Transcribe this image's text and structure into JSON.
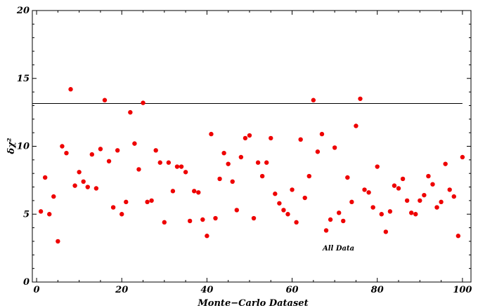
{
  "chart_data": {
    "type": "scatter",
    "title": "",
    "xlabel": "Monte−Carlo Dataset",
    "ylabel": "δχ²",
    "xlim": [
      -1,
      102
    ],
    "ylim": [
      0,
      20
    ],
    "x_ticks": [
      "0",
      "20",
      "40",
      "60",
      "80",
      "100"
    ],
    "y_ticks": [
      "0",
      "5",
      "10",
      "15",
      "20"
    ],
    "grid": false,
    "annotation": "All Data",
    "reference_line": 13.15,
    "colors": {
      "points": "#ee0000",
      "line": "#000000",
      "frame": "#000000"
    },
    "series": [
      {
        "x": [
          1,
          2,
          3,
          4,
          5,
          6,
          7,
          8,
          9,
          10,
          11,
          12,
          13,
          14,
          15,
          16,
          17,
          18,
          19,
          20,
          21,
          22,
          23,
          24,
          25,
          26,
          27,
          28,
          29,
          30,
          31,
          32,
          33,
          34,
          35,
          36,
          37,
          38,
          39,
          40,
          41,
          42,
          43,
          44,
          45,
          46,
          47,
          48,
          49,
          50,
          51,
          52,
          53,
          54,
          55,
          56,
          57,
          58,
          59,
          60,
          61,
          62,
          63,
          64,
          65,
          66,
          67,
          68,
          69,
          70,
          71,
          72,
          73,
          74,
          75,
          76,
          77,
          78,
          79,
          80,
          81,
          82,
          83,
          84,
          85,
          86,
          87,
          88,
          89,
          90,
          91,
          92,
          93,
          94,
          95,
          96,
          97,
          98,
          99,
          100
        ],
        "y": [
          5.2,
          7.7,
          5.0,
          6.3,
          3.0,
          10.0,
          9.5,
          14.2,
          7.1,
          8.1,
          7.4,
          7.0,
          9.4,
          6.9,
          9.8,
          13.4,
          8.9,
          5.5,
          9.7,
          5.0,
          5.9,
          12.5,
          10.2,
          8.3,
          13.2,
          5.9,
          6.0,
          9.7,
          8.8,
          4.4,
          8.8,
          6.7,
          8.5,
          8.5,
          8.1,
          4.5,
          6.7,
          6.6,
          4.6,
          3.4,
          10.9,
          4.7,
          7.6,
          9.5,
          8.7,
          7.4,
          5.3,
          9.2,
          10.6,
          10.8,
          4.7,
          8.8,
          7.8,
          8.8,
          10.6,
          6.5,
          5.8,
          5.3,
          5.0,
          6.8,
          4.4,
          10.5,
          6.2,
          7.8,
          13.4,
          9.6,
          10.9,
          3.8,
          4.6,
          9.9,
          5.1,
          4.5,
          7.7,
          5.9,
          11.5,
          13.5,
          6.8,
          6.6,
          5.5,
          8.5,
          5.0,
          3.7,
          5.2,
          7.1,
          6.9,
          7.6,
          6.0,
          5.1,
          5.0,
          6.0,
          6.4,
          7.8,
          7.2,
          5.5,
          5.9,
          8.7,
          6.8,
          6.3,
          3.4,
          9.2
        ]
      }
    ]
  }
}
